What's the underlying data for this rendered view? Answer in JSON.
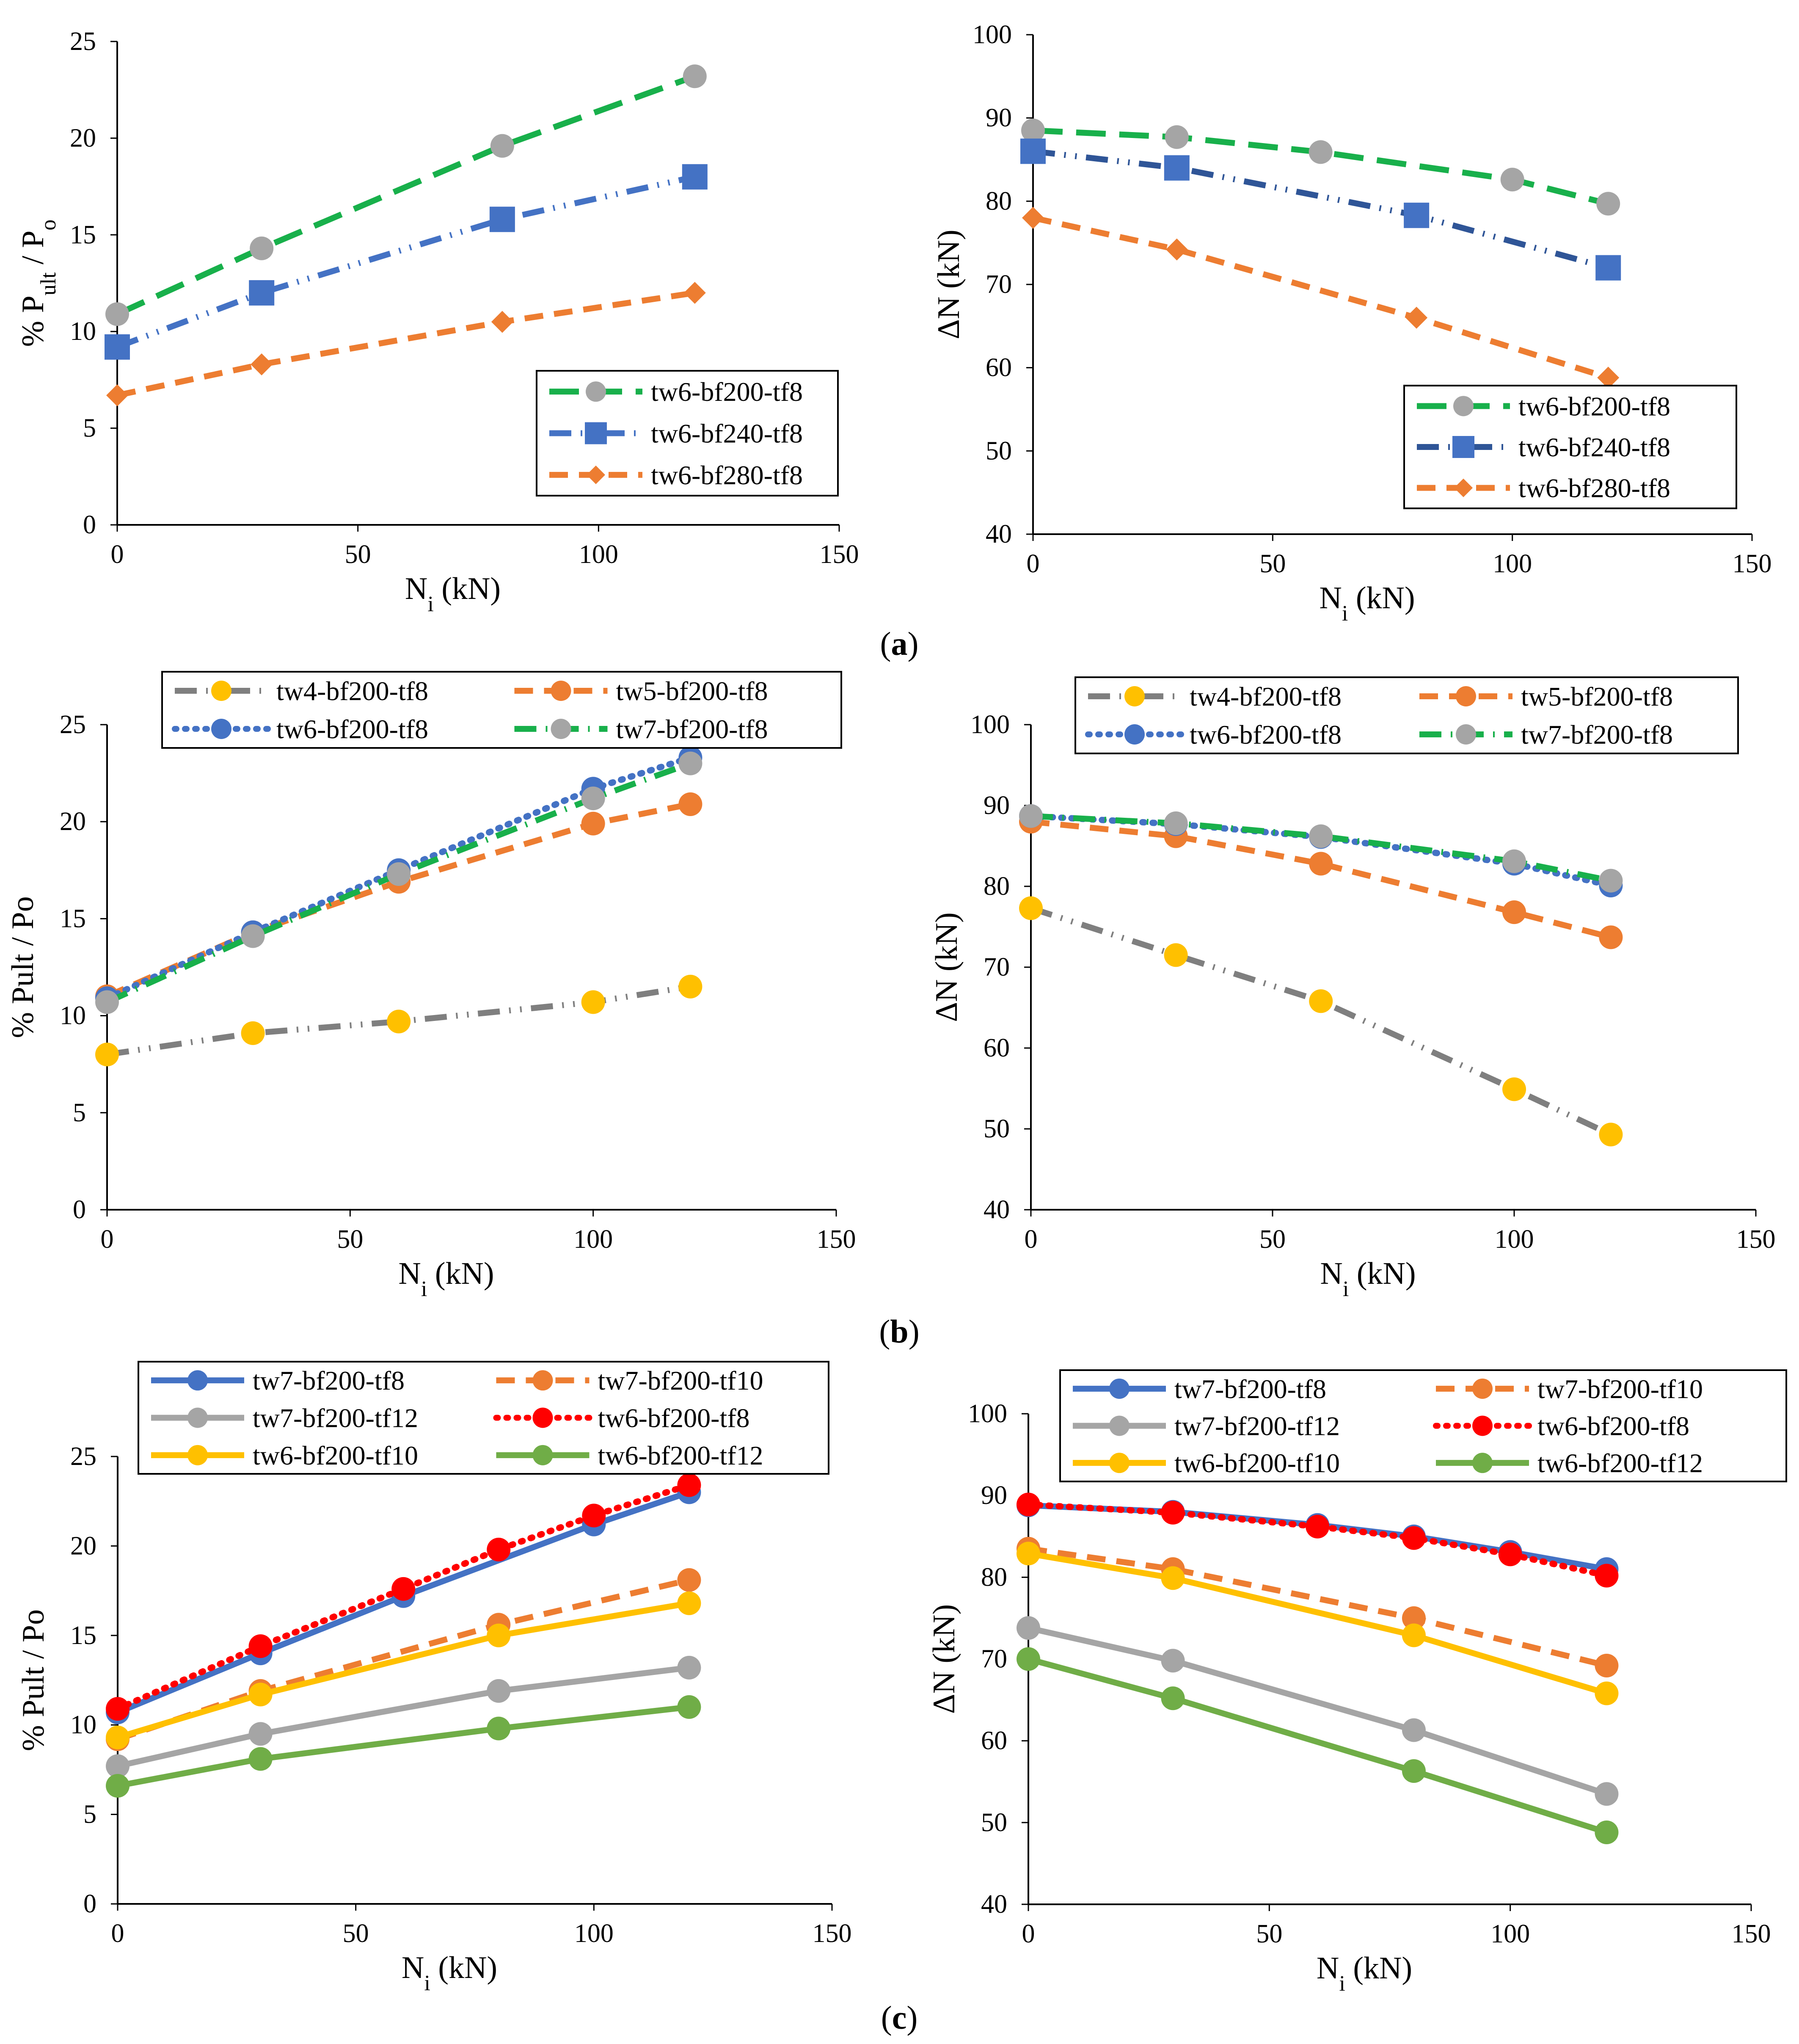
{
  "figure": {
    "captions": [
      "a",
      "b",
      "c"
    ]
  },
  "colors": {
    "green": "#18b04b",
    "blue": "#4472c4",
    "dark_blue": "#2f5597",
    "orange": "#ed7d31",
    "gray": "#7f7f7f",
    "light_gray": "#a5a5a5",
    "marker_gray": "#a5a5a5",
    "yellow": "#ffc000",
    "red": "#ff0000",
    "light_green": "#70ad47"
  },
  "chart_data": [
    {
      "type": "line",
      "panel": "a-left",
      "xlabel": "N_i (kN)",
      "ylabel": "% P_ult / P_o",
      "xlim": [
        0,
        150
      ],
      "ylim": [
        0,
        25
      ],
      "xticks": [
        0,
        50,
        100,
        150
      ],
      "yticks": [
        0,
        5,
        10,
        15,
        20,
        25
      ],
      "legend_position": "bottom-right",
      "series": [
        {
          "name": "tw6-bf200-tf8",
          "color": "#18b04b",
          "marker": "circle",
          "marker_color": "#a5a5a5",
          "dash": "long",
          "x": [
            0,
            30,
            80,
            120
          ],
          "values": [
            10.9,
            14.3,
            19.6,
            23.2
          ]
        },
        {
          "name": "tw6-bf240-tf8",
          "color": "#4472c4",
          "marker": "square",
          "marker_color": "#4472c4",
          "dash": "dashdotdot",
          "x": [
            0,
            30,
            80,
            120
          ],
          "values": [
            9.2,
            12.0,
            15.8,
            18.0
          ]
        },
        {
          "name": "tw6-bf280-tf8",
          "color": "#ed7d31",
          "marker": "diamond",
          "marker_color": "#ed7d31",
          "dash": "dash",
          "x": [
            0,
            30,
            80,
            120
          ],
          "values": [
            6.7,
            8.3,
            10.5,
            12.0
          ]
        }
      ]
    },
    {
      "type": "line",
      "panel": "a-right",
      "xlabel": "N_i (kN)",
      "ylabel": "ΔN (kN)",
      "xlim": [
        0,
        150
      ],
      "ylim": [
        40,
        100
      ],
      "xticks": [
        0,
        50,
        100,
        150
      ],
      "yticks": [
        40,
        50,
        60,
        70,
        80,
        90,
        100
      ],
      "legend_position": "bottom-right",
      "series": [
        {
          "name": "tw6-bf200-tf8",
          "color": "#18b04b",
          "marker": "circle",
          "marker_color": "#a5a5a5",
          "dash": "long",
          "x": [
            0,
            30,
            60,
            100,
            120
          ],
          "values": [
            88.5,
            87.7,
            85.9,
            82.6,
            79.7
          ]
        },
        {
          "name": "tw6-bf240-tf8",
          "color": "#2f5597",
          "marker": "square",
          "marker_color": "#4472c4",
          "dash": "dashdotdot",
          "x": [
            0,
            30,
            80,
            120
          ],
          "values": [
            86.0,
            84.0,
            78.3,
            72.0
          ]
        },
        {
          "name": "tw6-bf280-tf8",
          "color": "#ed7d31",
          "marker": "diamond",
          "marker_color": "#ed7d31",
          "dash": "dash",
          "x": [
            0,
            30,
            80,
            120
          ],
          "values": [
            78.0,
            74.2,
            66.0,
            58.8
          ]
        }
      ]
    },
    {
      "type": "line",
      "panel": "b-left",
      "xlabel": "N_i (kN)",
      "ylabel": "% Pult / Po",
      "xlim": [
        0,
        150
      ],
      "ylim": [
        0,
        25
      ],
      "xticks": [
        0,
        50,
        100,
        150
      ],
      "yticks": [
        0,
        5,
        10,
        15,
        20,
        25
      ],
      "legend_position": "top",
      "series": [
        {
          "name": "tw4-bf200-tf8",
          "color": "#7f7f7f",
          "marker": "circle",
          "marker_color": "#ffc000",
          "dash": "dashdotdot",
          "x": [
            0,
            30,
            60,
            100,
            120
          ],
          "values": [
            8.0,
            9.1,
            9.7,
            10.7,
            11.5
          ]
        },
        {
          "name": "tw5-bf200-tf8",
          "color": "#ed7d31",
          "marker": "circle",
          "marker_color": "#ed7d31",
          "dash": "dash",
          "x": [
            0,
            30,
            60,
            100,
            120
          ],
          "values": [
            11.0,
            14.3,
            16.9,
            19.9,
            20.9
          ]
        },
        {
          "name": "tw6-bf200-tf8",
          "color": "#4472c4",
          "marker": "circle",
          "marker_color": "#4472c4",
          "dash": "dot",
          "x": [
            0,
            30,
            60,
            100,
            120
          ],
          "values": [
            10.9,
            14.3,
            17.5,
            21.7,
            23.3
          ]
        },
        {
          "name": "tw7-bf200-tf8",
          "color": "#18b04b",
          "marker": "circle",
          "marker_color": "#a5a5a5",
          "dash": "dashdot",
          "x": [
            0,
            30,
            60,
            100,
            120
          ],
          "values": [
            10.7,
            14.1,
            17.3,
            21.2,
            23.0
          ]
        }
      ]
    },
    {
      "type": "line",
      "panel": "b-right",
      "xlabel": "N_i (kN)",
      "ylabel": "ΔN (kN)",
      "xlim": [
        0,
        150
      ],
      "ylim": [
        40,
        100
      ],
      "xticks": [
        0,
        50,
        100,
        150
      ],
      "yticks": [
        40,
        50,
        60,
        70,
        80,
        90,
        100
      ],
      "legend_position": "top",
      "series": [
        {
          "name": "tw4-bf200-tf8",
          "color": "#7f7f7f",
          "marker": "circle",
          "marker_color": "#ffc000",
          "dash": "dashdotdot",
          "x": [
            0,
            30,
            60,
            100,
            120
          ],
          "values": [
            77.3,
            71.5,
            65.8,
            54.9,
            49.3
          ]
        },
        {
          "name": "tw5-bf200-tf8",
          "color": "#ed7d31",
          "marker": "circle",
          "marker_color": "#ed7d31",
          "dash": "dash",
          "x": [
            0,
            30,
            60,
            100,
            120
          ],
          "values": [
            88.0,
            86.2,
            82.8,
            76.8,
            73.7
          ]
        },
        {
          "name": "tw6-bf200-tf8",
          "color": "#4472c4",
          "marker": "circle",
          "marker_color": "#4472c4",
          "dash": "dot",
          "x": [
            0,
            30,
            60,
            100,
            120
          ],
          "values": [
            88.7,
            87.7,
            86.1,
            82.8,
            80.1
          ]
        },
        {
          "name": "tw7-bf200-tf8",
          "color": "#18b04b",
          "marker": "circle",
          "marker_color": "#a5a5a5",
          "dash": "dashdot",
          "x": [
            0,
            30,
            60,
            100,
            120
          ],
          "values": [
            88.7,
            87.8,
            86.2,
            83.1,
            80.7
          ]
        }
      ]
    },
    {
      "type": "line",
      "panel": "c-left",
      "xlabel": "N_i (kN)",
      "ylabel": "% Pult / Po",
      "xlim": [
        0,
        150
      ],
      "ylim": [
        0,
        25
      ],
      "xticks": [
        0,
        50,
        100,
        150
      ],
      "yticks": [
        0,
        5,
        10,
        15,
        20,
        25
      ],
      "legend_position": "top",
      "series": [
        {
          "name": "tw7-bf200-tf8",
          "color": "#4472c4",
          "marker": "circle",
          "marker_color": "#4472c4",
          "dash": "solid",
          "x": [
            0,
            30,
            60,
            100,
            120
          ],
          "values": [
            10.7,
            14.0,
            17.2,
            21.2,
            23.0
          ]
        },
        {
          "name": "tw7-bf200-tf10",
          "color": "#ed7d31",
          "marker": "circle",
          "marker_color": "#ed7d31",
          "dash": "dash",
          "x": [
            0,
            30,
            80,
            120
          ],
          "values": [
            9.2,
            11.9,
            15.6,
            18.1
          ]
        },
        {
          "name": "tw7-bf200-tf12",
          "color": "#a5a5a5",
          "marker": "circle",
          "marker_color": "#a5a5a5",
          "dash": "solid",
          "x": [
            0,
            30,
            80,
            120
          ],
          "values": [
            7.7,
            9.5,
            11.9,
            13.2
          ]
        },
        {
          "name": "tw6-bf200-tf8",
          "color": "#ff0000",
          "marker": "circle",
          "marker_color": "#ff0000",
          "dash": "dot",
          "x": [
            0,
            30,
            60,
            80,
            100,
            120
          ],
          "values": [
            10.9,
            14.4,
            17.6,
            19.8,
            21.7,
            23.4
          ]
        },
        {
          "name": "tw6-bf200-tf10",
          "color": "#ffc000",
          "marker": "circle",
          "marker_color": "#ffc000",
          "dash": "solid",
          "x": [
            0,
            30,
            80,
            120
          ],
          "values": [
            9.3,
            11.7,
            15.0,
            16.8
          ]
        },
        {
          "name": "tw6-bf200-tf12",
          "color": "#70ad47",
          "marker": "circle",
          "marker_color": "#70ad47",
          "dash": "solid",
          "x": [
            0,
            30,
            80,
            120
          ],
          "values": [
            6.6,
            8.1,
            9.8,
            11.0
          ]
        }
      ]
    },
    {
      "type": "line",
      "panel": "c-right",
      "xlabel": "N_i (kN)",
      "ylabel": "ΔN (kN)",
      "xlim": [
        0,
        150
      ],
      "ylim": [
        40,
        100
      ],
      "xticks": [
        0,
        50,
        100,
        150
      ],
      "yticks": [
        40,
        50,
        60,
        70,
        80,
        90,
        100
      ],
      "legend_position": "top",
      "series": [
        {
          "name": "tw7-bf200-tf8",
          "color": "#4472c4",
          "marker": "circle",
          "marker_color": "#4472c4",
          "dash": "solid",
          "x": [
            0,
            30,
            60,
            80,
            100,
            120
          ],
          "values": [
            88.8,
            88.0,
            86.4,
            85.0,
            83.1,
            81.0
          ]
        },
        {
          "name": "tw7-bf200-tf10",
          "color": "#ed7d31",
          "marker": "circle",
          "marker_color": "#ed7d31",
          "dash": "dash",
          "x": [
            0,
            30,
            80,
            120
          ],
          "values": [
            83.5,
            81.0,
            75.0,
            69.2
          ]
        },
        {
          "name": "tw7-bf200-tf12",
          "color": "#a5a5a5",
          "marker": "circle",
          "marker_color": "#a5a5a5",
          "dash": "solid",
          "x": [
            0,
            30,
            80,
            120
          ],
          "values": [
            73.8,
            69.8,
            61.3,
            53.5
          ]
        },
        {
          "name": "tw6-bf200-tf8",
          "color": "#ff0000",
          "marker": "circle",
          "marker_color": "#ff0000",
          "dash": "dot",
          "x": [
            0,
            30,
            60,
            80,
            100,
            120
          ],
          "values": [
            88.9,
            87.9,
            86.2,
            84.8,
            82.8,
            80.2
          ]
        },
        {
          "name": "tw6-bf200-tf10",
          "color": "#ffc000",
          "marker": "circle",
          "marker_color": "#ffc000",
          "dash": "solid",
          "x": [
            0,
            30,
            80,
            120
          ],
          "values": [
            82.9,
            79.9,
            72.9,
            65.8
          ]
        },
        {
          "name": "tw6-bf200-tf12",
          "color": "#70ad47",
          "marker": "circle",
          "marker_color": "#70ad47",
          "dash": "solid",
          "x": [
            0,
            30,
            80,
            120
          ],
          "values": [
            70.0,
            65.2,
            56.3,
            48.8
          ]
        }
      ]
    }
  ]
}
